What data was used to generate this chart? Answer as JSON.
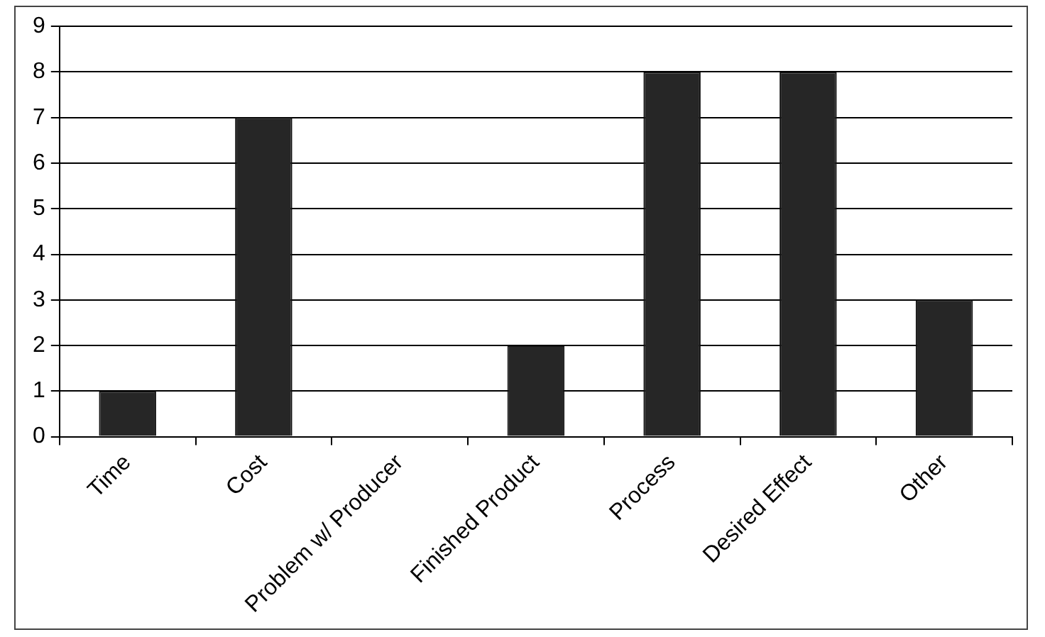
{
  "chart_data": {
    "type": "bar",
    "categories": [
      "Time",
      "Cost",
      "Problem w/ Producer",
      "Finished Product",
      "Process",
      "Desired Effect",
      "Other"
    ],
    "values": [
      1,
      7,
      0,
      2,
      8,
      8,
      3
    ],
    "color": "#262626",
    "ylim": [
      0,
      9
    ],
    "yticks": [
      0,
      1,
      2,
      3,
      4,
      5,
      6,
      7,
      8,
      9
    ],
    "grid": "y",
    "legend": false
  }
}
